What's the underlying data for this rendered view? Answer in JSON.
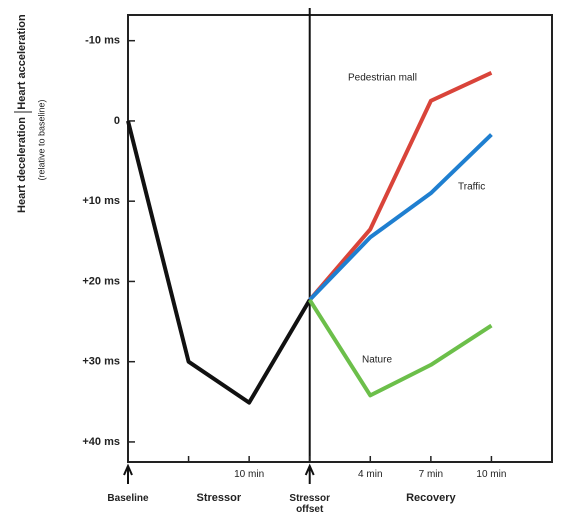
{
  "chart_data": {
    "type": "line",
    "y_label_up": "Heart acceleration",
    "y_label_down": "Heart deceleration",
    "y_label_note": "(relative to baseline)",
    "categories": [
      "Baseline",
      null,
      "10 min",
      "Stressor offset",
      "4 min",
      "7 min",
      "10 min"
    ],
    "phases": [
      "Stressor",
      "Recovery"
    ],
    "series": [
      {
        "color": "#111111",
        "values": [
          0,
          30,
          35.1,
          22.3,
          null,
          null,
          null
        ]
      },
      {
        "name": "Pedestrian mall",
        "color": "#d9443a",
        "values": [
          null,
          null,
          null,
          22.3,
          13.5,
          -2.5,
          -6
        ]
      },
      {
        "name": "Traffic",
        "color": "#1f7fd0",
        "values": [
          null,
          null,
          null,
          22.3,
          14.5,
          9,
          1.7
        ]
      },
      {
        "name": "Nature",
        "color": "#6cbf4a",
        "values": [
          null,
          null,
          null,
          22.3,
          34.2,
          30.4,
          25.5
        ]
      }
    ],
    "ylim": [
      42.5,
      -13.2
    ],
    "yticks": [
      {
        "value": -10,
        "label": "-10 ms"
      },
      0,
      {
        "value": 10,
        "label": "+10 ms"
      },
      {
        "value": 20,
        "label": "+20 ms"
      },
      {
        "value": 30,
        "label": "+30 ms"
      },
      {
        "value": 40,
        "label": "+40 ms"
      }
    ]
  }
}
